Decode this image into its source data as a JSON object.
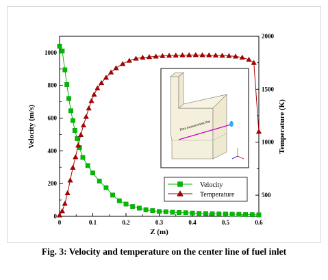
{
  "caption": "Fig. 3: Velocity and temperature on the center line of fuel inlet",
  "chart_data": {
    "type": "line",
    "xlabel": "Z (m)",
    "ylabel_left": "Velocity (m/s)",
    "ylabel_right": "Temperature (K)",
    "xlim": [
      0,
      0.6
    ],
    "ylim_left": [
      0,
      1100
    ],
    "ylim_right": [
      300,
      2000
    ],
    "x_ticks": [
      0,
      0.1,
      0.2,
      0.3,
      0.4,
      0.5,
      0.6
    ],
    "x_tick_labels": [
      "0",
      "0.1",
      "0.2",
      "0.3",
      "0.4",
      "0.5",
      "0.6"
    ],
    "y_left_ticks": [
      0,
      200,
      400,
      600,
      800,
      1000
    ],
    "y_left_tick_labels": [
      "0",
      "200",
      "400",
      "600",
      "800",
      "1000"
    ],
    "y_right_ticks": [
      500,
      1000,
      1500,
      2000
    ],
    "y_right_tick_labels": [
      "500",
      "1000",
      "1500",
      "2000"
    ],
    "legend_position": "center-right",
    "grid": false,
    "series": [
      {
        "name": "Velocity",
        "axis": "left",
        "color": "#00bb00",
        "marker": "square",
        "x": [
          0,
          0.008,
          0.016,
          0.022,
          0.028,
          0.034,
          0.04,
          0.046,
          0.053,
          0.06,
          0.07,
          0.085,
          0.1,
          0.12,
          0.14,
          0.16,
          0.18,
          0.2,
          0.22,
          0.24,
          0.26,
          0.28,
          0.3,
          0.32,
          0.34,
          0.36,
          0.38,
          0.4,
          0.42,
          0.44,
          0.46,
          0.48,
          0.5,
          0.52,
          0.54,
          0.56,
          0.58,
          0.6
        ],
        "y": [
          1040,
          1010,
          895,
          805,
          720,
          645,
          585,
          525,
          475,
          420,
          360,
          310,
          265,
          215,
          175,
          130,
          95,
          75,
          60,
          50,
          40,
          35,
          30,
          28,
          25,
          23,
          22,
          20,
          18,
          17,
          16,
          15,
          14,
          13,
          12,
          11,
          10,
          9
        ]
      },
      {
        "name": "Temperature",
        "axis": "right",
        "color": "#aa0000",
        "marker": "triangle",
        "x": [
          0,
          0.008,
          0.016,
          0.024,
          0.032,
          0.04,
          0.048,
          0.056,
          0.064,
          0.072,
          0.08,
          0.088,
          0.096,
          0.104,
          0.114,
          0.126,
          0.14,
          0.155,
          0.17,
          0.19,
          0.21,
          0.23,
          0.25,
          0.27,
          0.29,
          0.31,
          0.33,
          0.35,
          0.37,
          0.39,
          0.41,
          0.43,
          0.45,
          0.47,
          0.49,
          0.51,
          0.53,
          0.55,
          0.57,
          0.585,
          0.6
        ],
        "y": [
          310,
          350,
          420,
          520,
          640,
          760,
          860,
          970,
          1070,
          1160,
          1240,
          1320,
          1390,
          1450,
          1510,
          1560,
          1610,
          1660,
          1700,
          1740,
          1770,
          1790,
          1800,
          1805,
          1810,
          1815,
          1818,
          1820,
          1822,
          1823,
          1824,
          1823,
          1822,
          1820,
          1818,
          1815,
          1810,
          1800,
          1780,
          1750,
          1100
        ]
      }
    ],
    "inset": {
      "annotation": "Data measurement line"
    }
  }
}
